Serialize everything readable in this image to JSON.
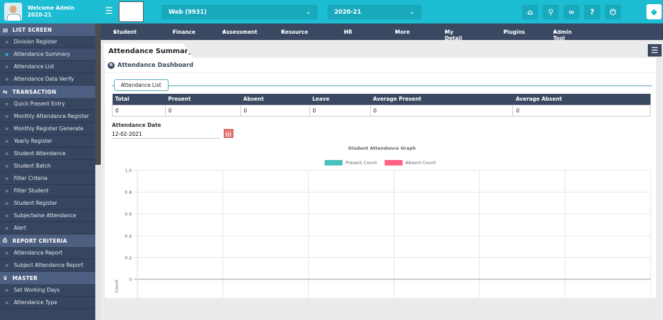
{
  "header": {
    "welcome": "Welcome Admin",
    "year": "2020-21",
    "branch_select": "Web (9931)",
    "session_select": "2020-21",
    "icons": [
      "home-icon",
      "search-icon",
      "link-icon",
      "help-icon",
      "power-icon",
      "paint-bucket-icon"
    ]
  },
  "sidebar": {
    "sections": [
      {
        "label": "LIST SCREEN",
        "icon": "list-icon",
        "items": [
          "Division Register",
          "Attendance Summary",
          "Attendance List",
          "Attendance Data Verify"
        ]
      },
      {
        "label": "TRANSACTION",
        "icon": "exchange-icon",
        "items": [
          "Quick Present Entry",
          "Monthly Attendance Register",
          "Monthly Register Generate",
          "Yearly Register",
          "Student Attendance",
          "Student Batch",
          "Filter Criteria",
          "Filter Student",
          "Student Register",
          "Subjectwise Attendance",
          "Alert"
        ]
      },
      {
        "label": "REPORT CRITERIA",
        "icon": "print-icon",
        "items": [
          "Attendance Report",
          "Subject Attendance Report"
        ]
      },
      {
        "label": "MASTER",
        "icon": "crown-icon",
        "items": [
          "Set Working Days",
          "Attendance Type"
        ]
      }
    ],
    "active": "Attendance Summary"
  },
  "nav": [
    "Student",
    "Finance",
    "Assessment",
    "Resource",
    "HR",
    "More",
    "My Detail",
    "Plugins",
    "Admin Tool"
  ],
  "page": {
    "tab": "Attendance Summary",
    "panel_title": "Attendance Dashboard",
    "fieldset": "Attendance List",
    "table": {
      "headers": [
        "Total",
        "Present",
        "Absent",
        "Leave",
        "Average Present",
        "Average Absent"
      ],
      "row": [
        "0",
        "0",
        "0",
        "0",
        "0",
        "0"
      ]
    },
    "date_label": "Attendance Date",
    "date_value": "12-02-2021"
  },
  "chart_data": {
    "type": "bar",
    "title": "Student Attendance Graph",
    "ylabel": "Count",
    "ylim": [
      0,
      1.0
    ],
    "yticks": [
      "1.0",
      "0.8",
      "0.6",
      "0.4",
      "0.2",
      "0"
    ],
    "grid": true,
    "legend": "top",
    "series": [
      {
        "name": "Present  Count",
        "color": "#4bc0c0",
        "values": []
      },
      {
        "name": "Absent Count",
        "color": "#ff6384",
        "values": []
      }
    ],
    "categories": []
  }
}
